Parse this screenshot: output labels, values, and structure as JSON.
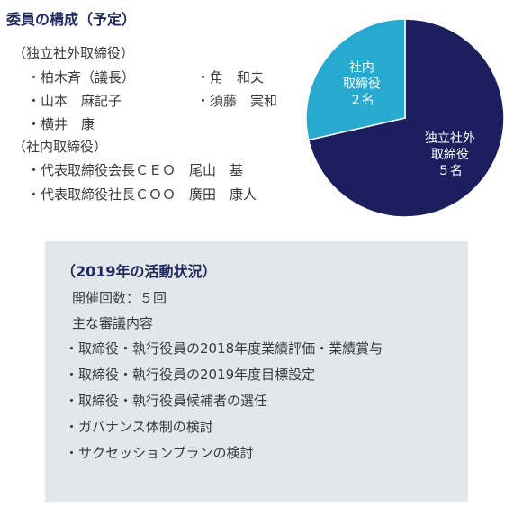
{
  "committee": {
    "title": "委員の構成（予定）",
    "outside_group_label": "（独立社外取締役）",
    "outside_members": [
      "・柏木斉（議長）",
      "・角　和夫",
      "・山本　麻記子",
      "・須藤　実和",
      "・横井　康"
    ],
    "inside_group_label": "（社内取締役）",
    "inside_members": [
      "・代表取締役会長ＣＥＯ　尾山　基",
      "・代表取締役社長ＣＯＯ　廣田　康人"
    ]
  },
  "chart_data": {
    "type": "pie",
    "title": "",
    "slices": [
      {
        "label_lines": [
          "独立社外",
          "取締役",
          "５名"
        ],
        "label": "独立社外取締役 ５名",
        "value": 5,
        "color": "#1b1f5e"
      },
      {
        "label_lines": [
          "社内",
          "取締役",
          "２名"
        ],
        "label": "社内取締役 ２名",
        "value": 2,
        "color": "#27a9d0"
      }
    ]
  },
  "activity": {
    "heading": "（2019年の活動状況）",
    "meetings": "開催回数：５回",
    "topics_label": "主な審議内容",
    "items": [
      "・取締役・執行役員の2018年度業績評価・業績賞与",
      "・取締役・執行役員の2019年度目標設定",
      "・取締役・執行役員候補者の選任",
      "・ガバナンス体制の検討",
      "・サクセッションプランの検討"
    ]
  }
}
